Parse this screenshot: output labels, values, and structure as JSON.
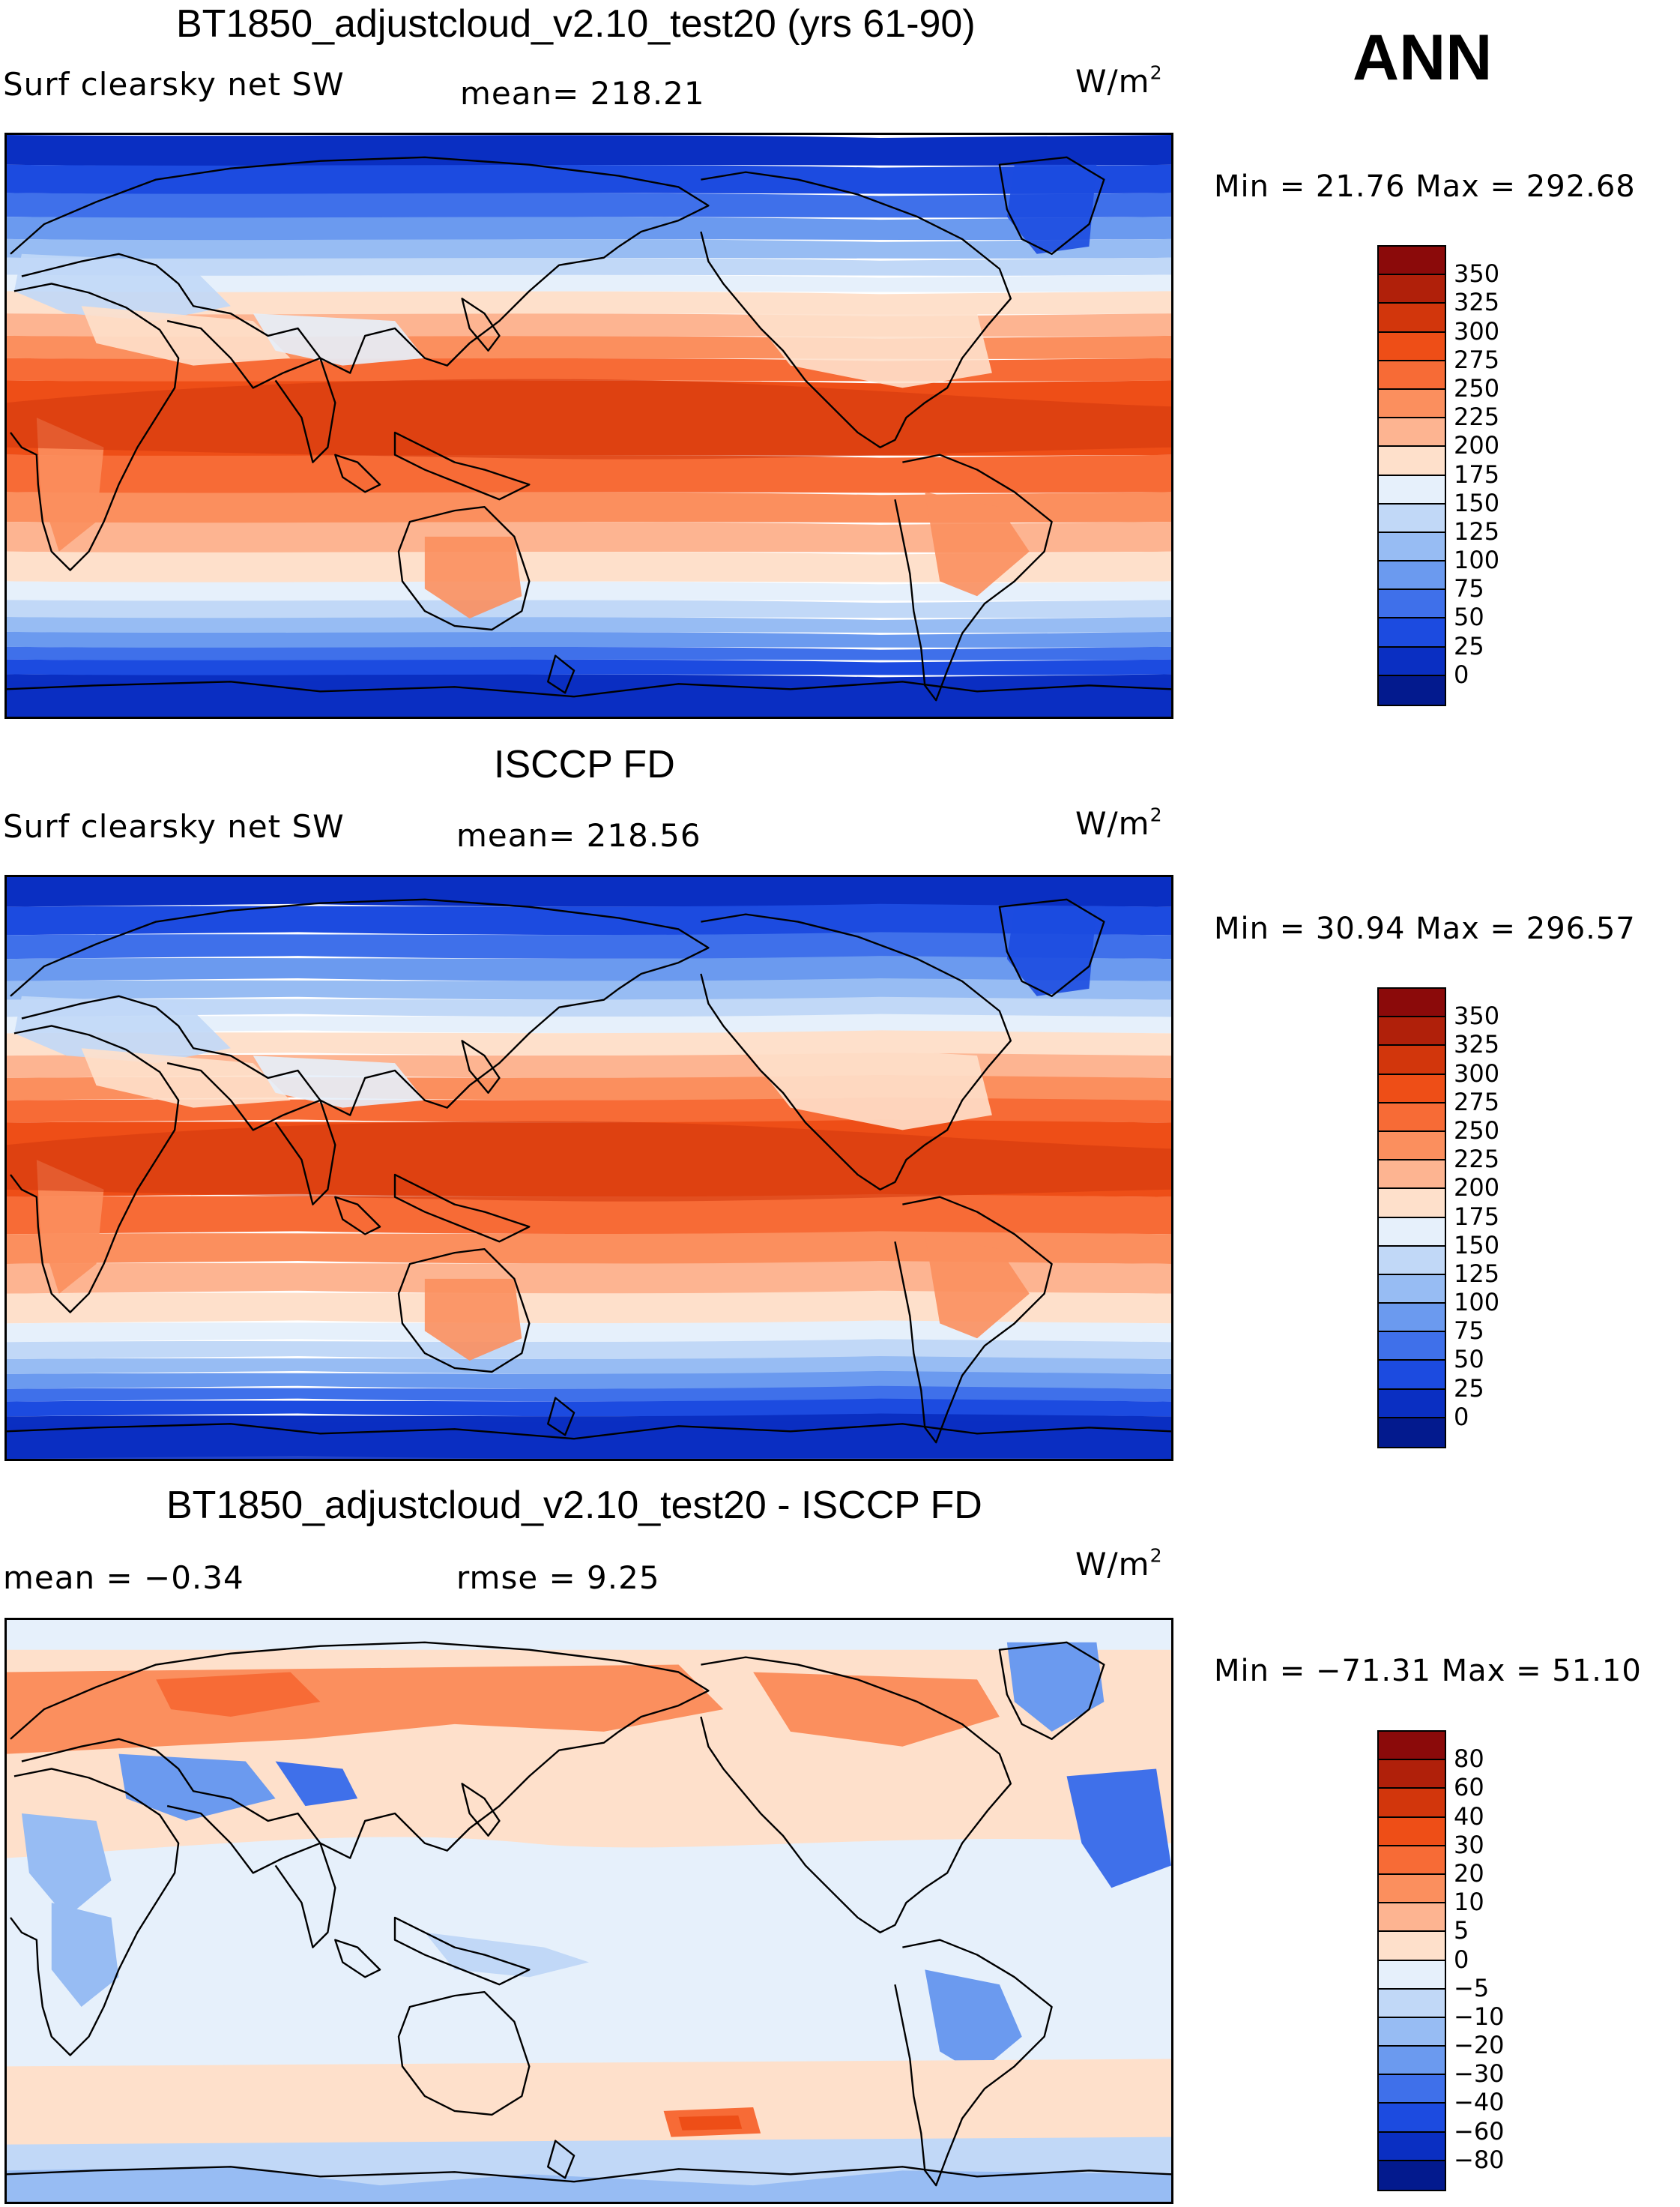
{
  "season": "ANN",
  "panels": [
    {
      "title": "BT1850_adjustcloud_v2.10_test20 (yrs 61-90)",
      "left_label": "Surf clearsky net SW",
      "mid_label": "mean= 218.21",
      "units_base": "W/m",
      "units_exp": "2",
      "minmax": "Min =   21.76 Max = 292.68",
      "kind": "field",
      "colorbar": {
        "labels": [
          "350",
          "325",
          "300",
          "275",
          "250",
          "225",
          "200",
          "175",
          "150",
          "125",
          "100",
          "75",
          "50",
          "25",
          "0"
        ],
        "colors": [
          "#8b0a0a",
          "#b0200a",
          "#d2360c",
          "#ee4e17",
          "#f76b36",
          "#fb8f5e",
          "#fdb491",
          "#fee0cb",
          "#e6f0fb",
          "#c1d8f7",
          "#97bcf3",
          "#6b9aef",
          "#3f70ea",
          "#1c4be0",
          "#0a2fc2",
          "#031a8e"
        ]
      }
    },
    {
      "title": "ISCCP FD",
      "left_label": "Surf clearsky net SW",
      "mid_label": "mean= 218.56",
      "units_base": "W/m",
      "units_exp": "2",
      "minmax": "Min =   30.94 Max = 296.57",
      "kind": "field",
      "colorbar": {
        "labels": [
          "350",
          "325",
          "300",
          "275",
          "250",
          "225",
          "200",
          "175",
          "150",
          "125",
          "100",
          "75",
          "50",
          "25",
          "0"
        ],
        "colors": [
          "#8b0a0a",
          "#b0200a",
          "#d2360c",
          "#ee4e17",
          "#f76b36",
          "#fb8f5e",
          "#fdb491",
          "#fee0cb",
          "#e6f0fb",
          "#c1d8f7",
          "#97bcf3",
          "#6b9aef",
          "#3f70ea",
          "#1c4be0",
          "#0a2fc2",
          "#031a8e"
        ]
      }
    },
    {
      "title": "BT1850_adjustcloud_v2.10_test20 - ISCCP FD",
      "left_label": "mean =   −0.34",
      "mid_label": "rmse =    9.25",
      "units_base": "W/m",
      "units_exp": "2",
      "minmax": "Min = −71.31 Max =  51.10",
      "kind": "diff",
      "colorbar": {
        "labels": [
          "80",
          "60",
          "40",
          "30",
          "20",
          "10",
          "5",
          "0",
          "−5",
          "−10",
          "−20",
          "−30",
          "−40",
          "−60",
          "−80"
        ],
        "colors": [
          "#8b0a0a",
          "#b0200a",
          "#d2360c",
          "#ee4e17",
          "#f76b36",
          "#fb8f5e",
          "#fdb491",
          "#fee0cb",
          "#e6f0fb",
          "#c1d8f7",
          "#97bcf3",
          "#6b9aef",
          "#3f70ea",
          "#1c4be0",
          "#0a2fc2",
          "#031a8e"
        ]
      }
    }
  ]
}
